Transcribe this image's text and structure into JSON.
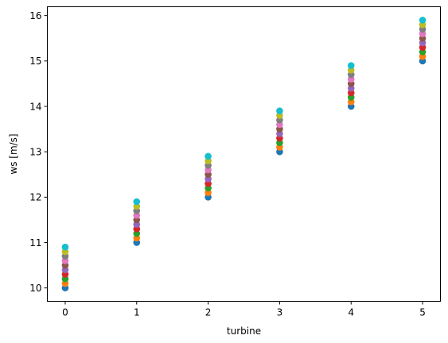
{
  "chart_data": {
    "type": "scatter",
    "xlabel": "turbine",
    "ylabel": "ws [m/s]",
    "xlim": [
      -0.25,
      5.25
    ],
    "ylim": [
      9.705,
      16.195
    ],
    "xticks": [
      0,
      1,
      2,
      3,
      4,
      5
    ],
    "yticks": [
      10,
      11,
      12,
      13,
      14,
      15,
      16
    ],
    "grid": false,
    "series": [
      {
        "color": "#1f77b4",
        "x": [
          0,
          1,
          2,
          3,
          4,
          5
        ],
        "y": [
          10.0,
          11.0,
          12.0,
          13.0,
          14.0,
          15.0
        ]
      },
      {
        "color": "#ff7f0e",
        "x": [
          0,
          1,
          2,
          3,
          4,
          5
        ],
        "y": [
          10.1,
          11.1,
          12.1,
          13.1,
          14.1,
          15.1
        ]
      },
      {
        "color": "#2ca02c",
        "x": [
          0,
          1,
          2,
          3,
          4,
          5
        ],
        "y": [
          10.2,
          11.2,
          12.2,
          13.2,
          14.2,
          15.2
        ]
      },
      {
        "color": "#d62728",
        "x": [
          0,
          1,
          2,
          3,
          4,
          5
        ],
        "y": [
          10.3,
          11.3,
          12.3,
          13.3,
          14.3,
          15.3
        ]
      },
      {
        "color": "#9467bd",
        "x": [
          0,
          1,
          2,
          3,
          4,
          5
        ],
        "y": [
          10.4,
          11.4,
          12.4,
          13.4,
          14.4,
          15.4
        ]
      },
      {
        "color": "#8c564b",
        "x": [
          0,
          1,
          2,
          3,
          4,
          5
        ],
        "y": [
          10.5,
          11.5,
          12.5,
          13.5,
          14.5,
          15.5
        ]
      },
      {
        "color": "#e377c2",
        "x": [
          0,
          1,
          2,
          3,
          4,
          5
        ],
        "y": [
          10.6,
          11.6,
          12.6,
          13.6,
          14.6,
          15.6
        ]
      },
      {
        "color": "#7f7f7f",
        "x": [
          0,
          1,
          2,
          3,
          4,
          5
        ],
        "y": [
          10.7,
          11.7,
          12.7,
          13.7,
          14.7,
          15.7
        ]
      },
      {
        "color": "#bcbd22",
        "x": [
          0,
          1,
          2,
          3,
          4,
          5
        ],
        "y": [
          10.8,
          11.8,
          12.8,
          13.8,
          14.8,
          15.8
        ]
      },
      {
        "color": "#17becf",
        "x": [
          0,
          1,
          2,
          3,
          4,
          5
        ],
        "y": [
          10.9,
          11.9,
          12.9,
          13.9,
          14.9,
          15.9
        ]
      }
    ]
  }
}
